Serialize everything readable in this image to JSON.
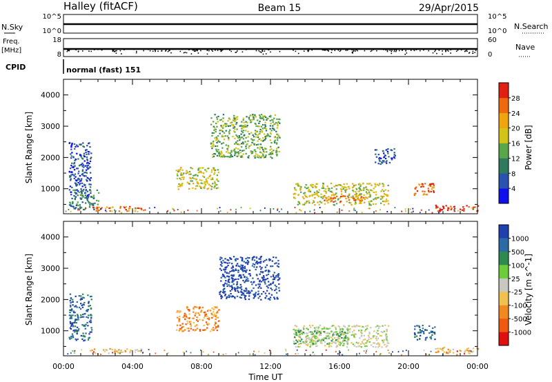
{
  "header": {
    "station": "Halley (fitACF)",
    "beam": "Beam 15",
    "date": "29/Apr/2015"
  },
  "strips": {
    "nsky_label": "N.Sky",
    "nsearch_label": "N.Search",
    "nsky_ticks": [
      "10^5",
      "10^0"
    ],
    "freq_label": "Freq.",
    "freq_unit": "[MHz]",
    "freq_ticks": [
      "18",
      "8"
    ],
    "nave_label": "Nave",
    "nave_ticks": [
      "60",
      "0"
    ],
    "cpid_label": "CPID",
    "cpid_text": "normal (fast) 151"
  },
  "chart_data": [
    {
      "type": "heatmap",
      "title": "",
      "xlabel": "",
      "ylabel": "Slant Range [km]",
      "colorbar_label": "Power [dB]",
      "xlim": [
        "00:00",
        "24:00"
      ],
      "ylim": [
        200,
        4500
      ],
      "yticks": [
        1000,
        2000,
        3000,
        4000
      ],
      "colorbar_ticks": [
        "4",
        "8",
        "12",
        "16",
        "20",
        "24",
        "28"
      ],
      "colorbar_colors": [
        "#1010ee",
        "#2a52b0",
        "#2f7a5e",
        "#5aa64a",
        "#d2c316",
        "#f0a40d",
        "#ee6a0c",
        "#e02010"
      ],
      "regions": [
        {
          "t_start": 0.3,
          "t_end": 1.6,
          "r_start": 700,
          "r_end": 2500,
          "level": 1
        },
        {
          "t_start": 0.3,
          "t_end": 2.0,
          "r_start": 350,
          "r_end": 1000,
          "level": 2
        },
        {
          "t_start": 1.5,
          "t_end": 4.5,
          "r_start": 300,
          "r_end": 450,
          "level": 6
        },
        {
          "t_start": 6.5,
          "t_end": 9.0,
          "r_start": 1000,
          "r_end": 1700,
          "level": 4
        },
        {
          "t_start": 8.5,
          "t_end": 12.5,
          "r_start": 2000,
          "r_end": 3400,
          "level": 3
        },
        {
          "t_start": 13.3,
          "t_end": 18.8,
          "r_start": 500,
          "r_end": 1200,
          "level": 4
        },
        {
          "t_start": 15.0,
          "t_end": 17.5,
          "r_start": 600,
          "r_end": 800,
          "level": 6
        },
        {
          "t_start": 18.0,
          "t_end": 19.2,
          "r_start": 1800,
          "r_end": 2300,
          "level": 1
        },
        {
          "t_start": 20.3,
          "t_end": 21.5,
          "r_start": 800,
          "r_end": 1200,
          "level": 6
        },
        {
          "t_start": 21.5,
          "t_end": 24.0,
          "r_start": 300,
          "r_end": 500,
          "level": 7
        }
      ]
    },
    {
      "type": "heatmap",
      "title": "",
      "xlabel": "Time UT",
      "ylabel": "Slant Range [km]",
      "colorbar_label": "Velocity [m s^-1]",
      "xlim": [
        "00:00",
        "24:00"
      ],
      "ylim": [
        200,
        4500
      ],
      "yticks": [
        1000,
        2000,
        3000,
        4000
      ],
      "xticks": [
        "00:00",
        "04:00",
        "08:00",
        "12:00",
        "16:00",
        "20:00",
        "00:00"
      ],
      "colorbar_ticks": [
        "1000",
        "500",
        "100",
        "25",
        "-25",
        "-100",
        "-500",
        "-1000"
      ],
      "colorbar_colors": [
        "#2040b0",
        "#2c6aa6",
        "#2f8a50",
        "#6ccc3a",
        "#c8c8c0",
        "#f0c050",
        "#f08a20",
        "#ee5a10",
        "#e01010"
      ],
      "regions": [
        {
          "t_start": 0.3,
          "t_end": 1.6,
          "r_start": 700,
          "r_end": 2200,
          "level": 1
        },
        {
          "t_start": 1.5,
          "t_end": 4.5,
          "r_start": 300,
          "r_end": 450,
          "level": 5
        },
        {
          "t_start": 6.5,
          "t_end": 9.0,
          "r_start": 1000,
          "r_end": 1800,
          "level": 6
        },
        {
          "t_start": 9.0,
          "t_end": 12.5,
          "r_start": 2000,
          "r_end": 3400,
          "level": 0
        },
        {
          "t_start": 13.3,
          "t_end": 18.8,
          "r_start": 500,
          "r_end": 1200,
          "level": 4
        },
        {
          "t_start": 13.3,
          "t_end": 16.5,
          "r_start": 600,
          "r_end": 1100,
          "level": 3
        },
        {
          "t_start": 20.3,
          "t_end": 21.5,
          "r_start": 700,
          "r_end": 1200,
          "level": 1
        },
        {
          "t_start": 21.5,
          "t_end": 24.0,
          "r_start": 300,
          "r_end": 500,
          "level": 5
        }
      ]
    }
  ]
}
